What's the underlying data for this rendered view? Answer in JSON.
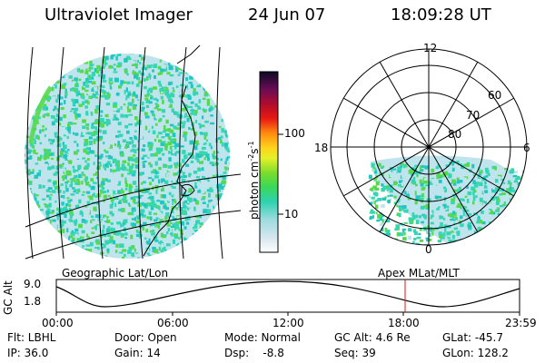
{
  "header": {
    "instrument": "Ultraviolet Imager",
    "date": "24 Jun 07",
    "time": "18:09:28 UT"
  },
  "colorbar": {
    "unit_label": "photon cm",
    "unit_exp1": "-2",
    "unit_mid": "s",
    "unit_exp2": "-1",
    "tick_high": "100",
    "tick_low": "10",
    "scale": "log"
  },
  "polar": {
    "mlt_top": "12",
    "mlt_right": "6",
    "mlt_bottom": "0",
    "mlt_left": "18",
    "lat_60": "60",
    "lat_70": "70",
    "lat_80": "80"
  },
  "footer": {
    "left_title": "Geographic Lat/Lon",
    "right_title": "Apex  MLat/MLT",
    "y_axis_label": "GC Alt",
    "y_top": "9.0",
    "y_bottom": "1.8",
    "x_ticks": [
      "00:00",
      "06:00",
      "12:00",
      "18:00",
      "23:59"
    ],
    "marker_time": "18:09"
  },
  "status": {
    "flt": "Flt: LBHL",
    "ip": "IP: 36.0",
    "door": "Door: Open",
    "gain": "Gain: 14",
    "mode": "Mode: Normal",
    "dsp": "Dsp:    -8.8",
    "gcalt": "GC Alt: 4.6 Re",
    "seq": "Seq: 39",
    "glat": "GLat: -45.7",
    "glon": "GLon: 128.2"
  },
  "colors": {
    "speckle_cyan": "#35d6b3",
    "speckle_green": "#56d94f",
    "speckle_pale": "#bfe4ee",
    "marker": "#d41a1a"
  }
}
